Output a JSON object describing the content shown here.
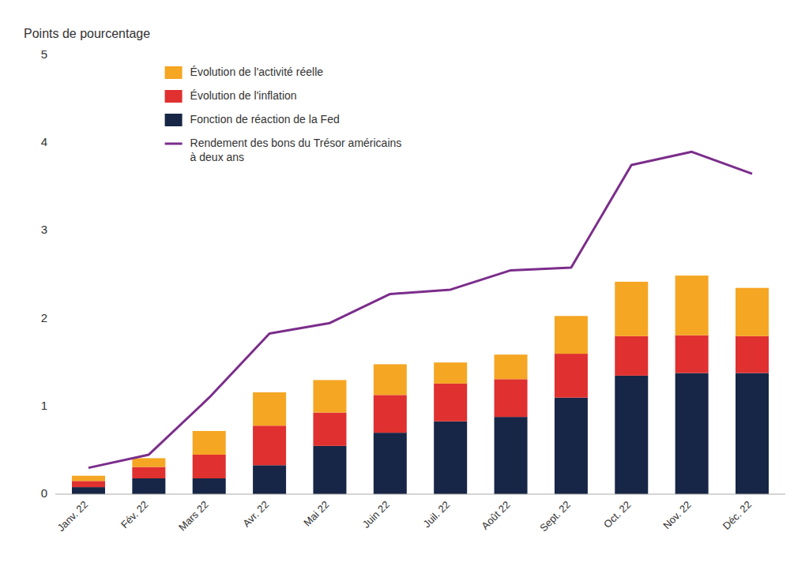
{
  "chart_data": {
    "type": "bar",
    "stacked": true,
    "ylabel": "Points de pourcentage",
    "categories": [
      "Janv. 22",
      "Fév. 22",
      "Mars 22",
      "Avr. 22",
      "Mai 22",
      "Juin 22",
      "Juil. 22",
      "Août 22",
      "Sept. 22",
      "Oct. 22",
      "Nov. 22",
      "Déc. 22"
    ],
    "series": [
      {
        "name": "Fonction de réaction de la Fed",
        "color": "#172646",
        "type": "bar",
        "values": [
          0.08,
          0.18,
          0.18,
          0.33,
          0.55,
          0.7,
          0.83,
          0.88,
          1.1,
          1.35,
          1.38,
          1.38
        ]
      },
      {
        "name": "Évolution de l'inflation",
        "color": "#e03030",
        "type": "bar",
        "values": [
          0.07,
          0.13,
          0.27,
          0.45,
          0.38,
          0.43,
          0.43,
          0.43,
          0.5,
          0.45,
          0.43,
          0.42
        ]
      },
      {
        "name": "Évolution de l'activité réelle",
        "color": "#f5a623",
        "type": "bar",
        "values": [
          0.06,
          0.1,
          0.27,
          0.38,
          0.37,
          0.35,
          0.24,
          0.28,
          0.43,
          0.62,
          0.68,
          0.55
        ]
      },
      {
        "name": "Rendement des bons du Trésor américains\nà deux ans",
        "color": "#7b2d8b",
        "type": "line",
        "values": [
          0.3,
          0.45,
          1.1,
          1.83,
          1.95,
          2.28,
          2.33,
          2.55,
          2.58,
          3.75,
          3.9,
          3.65
        ]
      }
    ],
    "ylim": [
      0,
      5
    ],
    "yticks": [
      0,
      1,
      2,
      3,
      4,
      5
    ],
    "grid": false,
    "legend": "upper left"
  }
}
